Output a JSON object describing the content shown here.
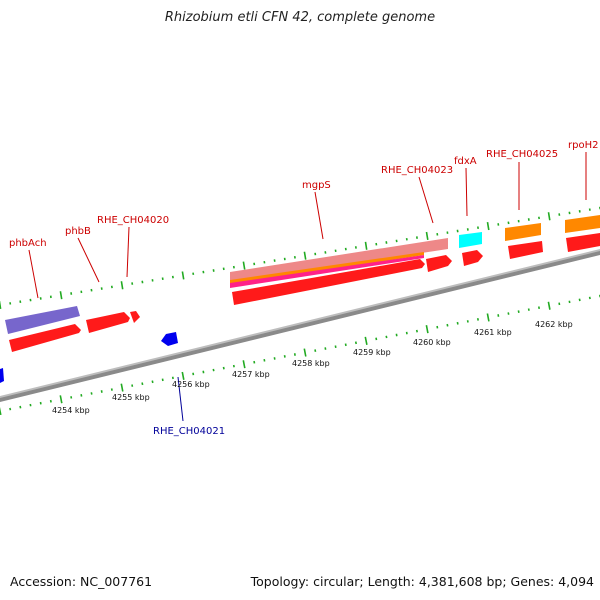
{
  "title": "Rhizobium etli CFN 42, complete genome",
  "footer": {
    "accession": "Accession: NC_007761",
    "summary": "Topology: circular; Length: 4,381,608 bp; Genes: 4,094"
  },
  "colors": {
    "forward_label": "#cc0000",
    "reverse_label": "#000099",
    "cds": "#ff0000",
    "rrna": "#7766cc",
    "trna": "#00ffff",
    "misc": "#ff8800",
    "pseudo": "#ee8888",
    "reverse_gene": "#0000ee",
    "tick": "#22aa22",
    "backbone": "#888888"
  },
  "kbp_labels": [
    "4254 kbp",
    "4255 kbp",
    "4256 kbp",
    "4257 kbp",
    "4258 kbp",
    "4259 kbp",
    "4260 kbp",
    "4261 kbp",
    "4262 kbp"
  ],
  "forward_gene_labels": [
    "phbAch",
    "phbB",
    "RHE_CH04020",
    "mgpS",
    "RHE_CH04023",
    "fdxA",
    "RHE_CH04025",
    "rpoH2"
  ],
  "reverse_gene_labels": [
    "RHE_CH04021"
  ]
}
